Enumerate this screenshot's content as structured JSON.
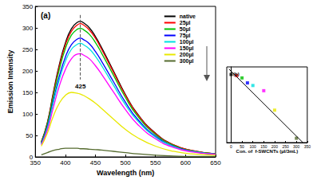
{
  "chart_data": [
    {
      "type": "line",
      "title": "(a)",
      "x_label": "Wavelength (nm)",
      "y_label": "Emission Intensity",
      "x": [
        360,
        370,
        380,
        390,
        400,
        410,
        420,
        425,
        430,
        440,
        450,
        460,
        480,
        500,
        520,
        550,
        580,
        610,
        650
      ],
      "series": [
        {
          "name": "native",
          "color": "#000000",
          "values": [
            35,
            80,
            150,
            215,
            265,
            298,
            313,
            315,
            312,
            300,
            280,
            255,
            200,
            145,
            100,
            55,
            28,
            15,
            7
          ]
        },
        {
          "name": "25µl",
          "color": "#ff0000",
          "values": [
            34,
            78,
            147,
            211,
            260,
            292,
            307,
            310,
            307,
            295,
            276,
            251,
            197,
            143,
            99,
            54,
            28,
            15,
            7
          ]
        },
        {
          "name": "50µl",
          "color": "#00c000",
          "values": [
            33,
            76,
            142,
            204,
            252,
            283,
            297,
            299,
            296,
            285,
            266,
            242,
            190,
            138,
            95,
            52,
            27,
            14,
            7
          ]
        },
        {
          "name": "75µl",
          "color": "#0000ff",
          "values": [
            31,
            70,
            131,
            188,
            232,
            261,
            274,
            276,
            273,
            263,
            245,
            223,
            175,
            127,
            88,
            48,
            25,
            13,
            6
          ]
        },
        {
          "name": "100µl",
          "color": "#00e0e0",
          "values": [
            30,
            67,
            126,
            180,
            222,
            250,
            262,
            264,
            261,
            251,
            234,
            213,
            167,
            121,
            84,
            46,
            24,
            13,
            6
          ]
        },
        {
          "name": "150µl",
          "color": "#ff00ff",
          "values": [
            28,
            62,
            115,
            165,
            203,
            228,
            239,
            240,
            237,
            228,
            212,
            193,
            151,
            110,
            76,
            42,
            22,
            12,
            6
          ]
        },
        {
          "name": "200µl",
          "color": "#e8e800",
          "values": [
            25,
            55,
            95,
            125,
            143,
            150,
            148,
            146,
            143,
            135,
            125,
            113,
            88,
            64,
            45,
            25,
            13,
            7,
            4
          ]
        },
        {
          "name": "300µl",
          "color": "#556b2f",
          "values": [
            5,
            10,
            15,
            18,
            20,
            20,
            20,
            19,
            19,
            18,
            17,
            16,
            13,
            10,
            7,
            4,
            2,
            1,
            1
          ]
        }
      ],
      "xlim": [
        350,
        650
      ],
      "xticks": [
        350,
        400,
        450,
        500,
        550,
        600,
        650
      ],
      "ylim": [
        0,
        350
      ],
      "yticks": [
        0,
        50,
        100,
        150,
        200,
        250,
        300,
        350
      ],
      "grid": false,
      "legend": "upper right",
      "line_style": "solid",
      "annotation": {
        "text": "425",
        "x": 425,
        "y_range": [
          330,
          180
        ]
      }
    },
    {
      "type": "scatter",
      "title": "(b)",
      "x_label": "Con. of  f-SWCNTs (µl/3mL)",
      "x": [
        0,
        25,
        50,
        75,
        100,
        150,
        200,
        300
      ],
      "values": [
        315,
        310,
        299,
        276,
        264,
        240,
        150,
        20
      ],
      "colors": [
        "#000000",
        "#ff0000",
        "#00c000",
        "#0000ff",
        "#00e0e0",
        "#ff00ff",
        "#e8e800",
        "#556b2f"
      ],
      "marker": "square",
      "fit": {
        "x": [
          -10,
          330
        ],
        "values": [
          340,
          0
        ],
        "color": "#000000"
      },
      "xlim": [
        -20,
        350
      ],
      "xticks": [
        0,
        50,
        100,
        150,
        200,
        250,
        300,
        350
      ],
      "ylim": [
        0,
        350
      ],
      "tick_labels": "x",
      "grid": false
    }
  ]
}
